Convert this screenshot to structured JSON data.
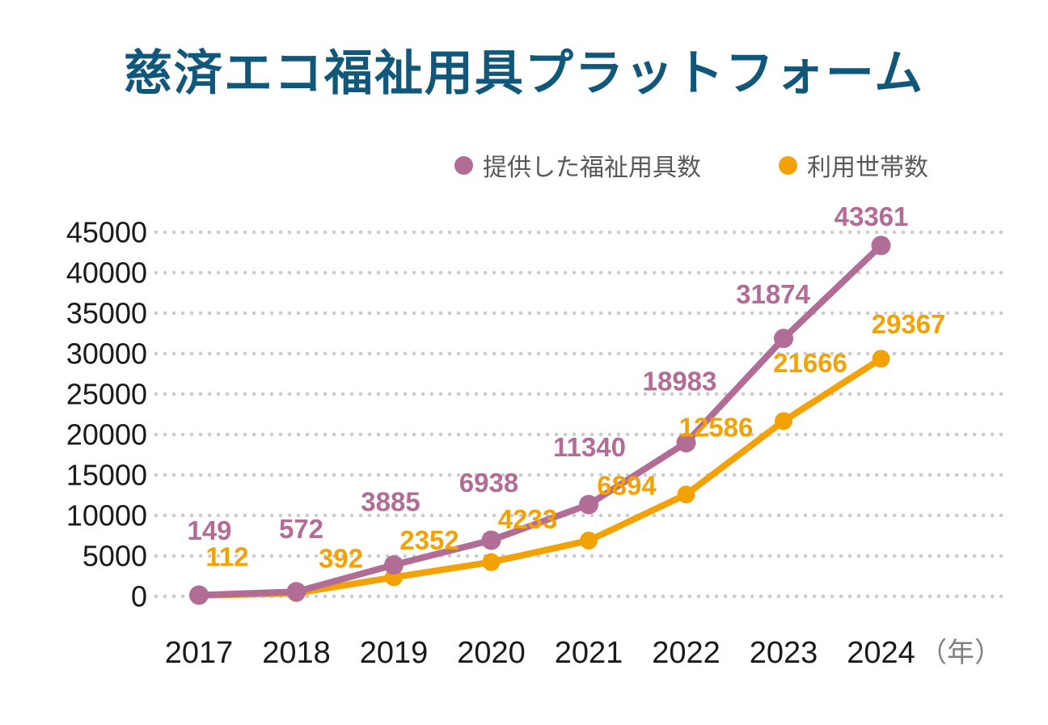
{
  "title": "慈済エコ福祉用具プラットフォーム",
  "legend": {
    "items": [
      {
        "label": "提供した福祉用具数",
        "color": "#b16d96"
      },
      {
        "label": "利用世帯数",
        "color": "#f2a205"
      }
    ]
  },
  "chart_data": {
    "type": "line",
    "title": "慈済エコ福祉用具プラットフォーム",
    "categories": [
      "2017",
      "2018",
      "2019",
      "2020",
      "2021",
      "2022",
      "2023",
      "2024"
    ],
    "x_unit_label": "（年）",
    "series": [
      {
        "name": "提供した福祉用具数",
        "color": "#b16d96",
        "values": [
          149,
          572,
          3885,
          6938,
          11340,
          18983,
          31874,
          43361
        ]
      },
      {
        "name": "利用世帯数",
        "color": "#f2a205",
        "values": [
          112,
          392,
          2352,
          4233,
          6894,
          12586,
          21666,
          29367
        ]
      }
    ],
    "y_ticks": [
      0,
      5000,
      10000,
      15000,
      20000,
      25000,
      30000,
      35000,
      40000,
      45000
    ],
    "ylim": [
      0,
      45000
    ],
    "xlabel": "",
    "ylabel": "",
    "grid": "dotted-horizontal",
    "legend_position": "top-right",
    "data_labels": true
  },
  "colors": {
    "title": "#115779",
    "axis_text": "#1a1a1a",
    "unit_text": "#808080",
    "grid": "#cccccc",
    "legend_text": "#595959",
    "background": "#ffffff"
  }
}
